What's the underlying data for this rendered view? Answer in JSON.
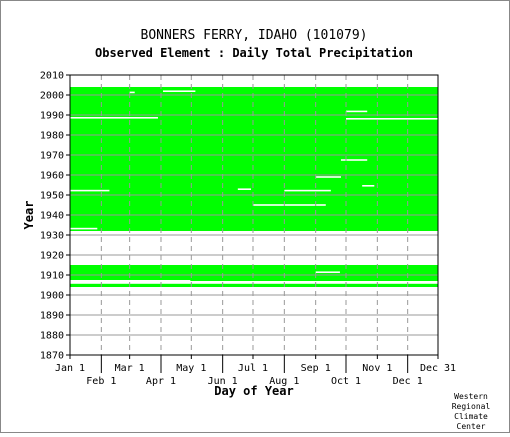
{
  "chart_data": {
    "type": "heatmap",
    "title": "BONNERS FERRY, IDAHO   (101079)",
    "subtitle": "Observed Element : Daily Total Precipitation",
    "xlabel": "Day of Year",
    "ylabel": "Year",
    "credit": [
      "Western",
      "Regional",
      "Climate",
      "Center"
    ],
    "colors": {
      "observed": "#00ff00",
      "missing": "#ffffff",
      "grid": "#999999"
    },
    "xlim": [
      1,
      365
    ],
    "ylim": [
      1870,
      2010
    ],
    "x_ticks_top_row": [
      {
        "label": "Jan 1",
        "day": 1
      },
      {
        "label": "Mar 1",
        "day": 60
      },
      {
        "label": "May 1",
        "day": 121
      },
      {
        "label": "Jul 1",
        "day": 182
      },
      {
        "label": "Sep 1",
        "day": 244
      },
      {
        "label": "Nov 1",
        "day": 305
      },
      {
        "label": "Dec 31",
        "day": 365
      }
    ],
    "x_ticks_bottom_row": [
      {
        "label": "Feb 1",
        "day": 32
      },
      {
        "label": "Apr 1",
        "day": 91
      },
      {
        "label": "Jun 1",
        "day": 152
      },
      {
        "label": "Aug 1",
        "day": 213
      },
      {
        "label": "Oct 1",
        "day": 274
      },
      {
        "label": "Dec 1",
        "day": 335
      }
    ],
    "y_ticks": [
      1870,
      1880,
      1890,
      1900,
      1910,
      1920,
      1930,
      1940,
      1950,
      1960,
      1970,
      1980,
      1990,
      2000,
      2010
    ],
    "observed_blocks": [
      {
        "year_start": 1907,
        "year_end": 1915,
        "day_start": 1,
        "day_end": 365
      },
      {
        "year_start": 1932,
        "year_end": 2004,
        "day_start": 1,
        "day_end": 365
      },
      {
        "year_start": 1904,
        "year_end": 1905.6,
        "day_start": 1,
        "day_end": 365
      }
    ],
    "missing_segments": [
      {
        "year": 1915.7,
        "day_start": 1,
        "day_end": 28
      },
      {
        "year": 1907.0,
        "day_start": 1,
        "day_end": 120
      },
      {
        "year": 1933.1,
        "day_start": 1,
        "day_end": 28
      },
      {
        "year": 1911.3,
        "day_start": 244,
        "day_end": 268
      },
      {
        "year": 1944.9,
        "day_start": 182,
        "day_end": 254
      },
      {
        "year": 1952.1,
        "day_start": 213,
        "day_end": 259
      },
      {
        "year": 1952.1,
        "day_start": 1,
        "day_end": 40
      },
      {
        "year": 1952.8,
        "day_start": 167,
        "day_end": 180
      },
      {
        "year": 1954.5,
        "day_start": 290,
        "day_end": 302
      },
      {
        "year": 1958.9,
        "day_start": 244,
        "day_end": 269
      },
      {
        "year": 1967.4,
        "day_start": 269,
        "day_end": 295
      },
      {
        "year": 1988.5,
        "day_start": 1,
        "day_end": 88
      },
      {
        "year": 1988.0,
        "day_start": 274,
        "day_end": 365
      },
      {
        "year": 1991.7,
        "day_start": 274,
        "day_end": 295
      },
      {
        "year": 2001.8,
        "day_start": 93,
        "day_end": 125
      },
      {
        "year": 2001.2,
        "day_start": 60,
        "day_end": 65
      },
      {
        "year": 2005.0,
        "day_start": 25,
        "day_end": 61
      },
      {
        "year": 2005.0,
        "day_start": 61,
        "day_end": 96
      }
    ]
  }
}
